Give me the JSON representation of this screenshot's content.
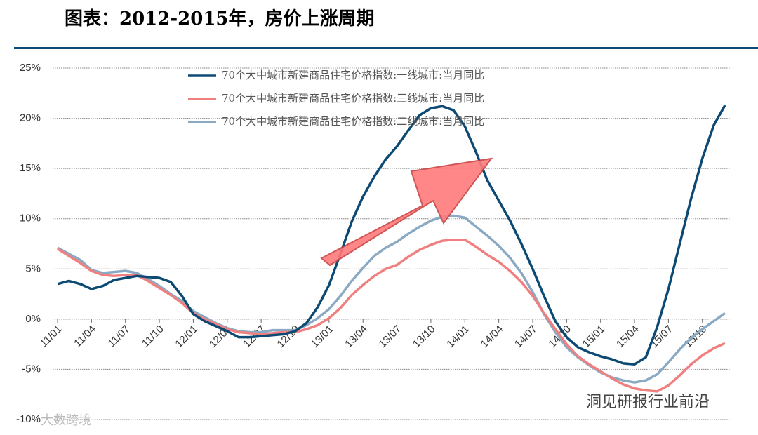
{
  "chart_data": {
    "type": "line",
    "title": "图表：2012-2015年，房价上涨周期",
    "categories": [
      "11/01",
      null,
      null,
      "11/04",
      null,
      null,
      "11/07",
      null,
      null,
      "11/10",
      null,
      null,
      "12/01",
      null,
      null,
      "12/04",
      null,
      null,
      "12/07",
      null,
      null,
      "12/10",
      null,
      null,
      "13/01",
      null,
      null,
      "13/04",
      null,
      null,
      "13/07",
      null,
      null,
      "13/10",
      null,
      null,
      "14/01",
      null,
      null,
      "14/04",
      null,
      null,
      "14/07",
      null,
      null,
      "14/10",
      null,
      null,
      "15/01",
      null,
      null,
      "15/04",
      null,
      null,
      "15/07",
      null,
      null,
      "15/10",
      null,
      null
    ],
    "series": [
      {
        "name": "70个大中城市新建商品住宅价格指数:一线城市:当月同比",
        "color": "#0d4a73",
        "values": [
          3.5,
          3.8,
          3.5,
          3.0,
          3.3,
          3.9,
          4.1,
          4.3,
          4.2,
          4.1,
          3.7,
          2.3,
          0.5,
          -0.2,
          -0.7,
          -1.2,
          -1.8,
          -1.8,
          -1.7,
          -1.6,
          -1.5,
          -1.2,
          -0.4,
          1.2,
          3.4,
          6.5,
          9.7,
          12.2,
          14.2,
          15.9,
          17.2,
          18.8,
          20.3,
          21.0,
          21.2,
          20.8,
          19.2,
          16.6,
          13.8,
          11.8,
          9.8,
          7.5,
          5.0,
          2.3,
          -0.2,
          -1.8,
          -2.8,
          -3.3,
          -3.7,
          -4.0,
          -4.4,
          -4.5,
          -3.8,
          -0.8,
          3.0,
          7.5,
          12.0,
          16.0,
          19.3,
          21.3
        ]
      },
      {
        "name": "70个大中城市新建商品住宅价格指数:三线城市:当月同比",
        "color": "#f08080",
        "values": [
          7.0,
          6.3,
          5.6,
          4.8,
          4.4,
          4.3,
          4.4,
          4.4,
          3.8,
          3.1,
          2.4,
          1.6,
          0.6,
          0.0,
          -0.5,
          -1.0,
          -1.3,
          -1.4,
          -1.5,
          -1.4,
          -1.3,
          -1.3,
          -1.0,
          -0.6,
          0.1,
          1.1,
          2.4,
          3.4,
          4.3,
          5.0,
          5.4,
          6.2,
          6.9,
          7.4,
          7.8,
          7.9,
          7.9,
          7.2,
          6.4,
          5.7,
          4.8,
          3.7,
          2.3,
          0.6,
          -1.0,
          -2.5,
          -3.7,
          -4.5,
          -5.2,
          -5.9,
          -6.5,
          -6.9,
          -7.1,
          -7.2,
          -6.6,
          -5.6,
          -4.5,
          -3.6,
          -2.9,
          -2.4
        ]
      },
      {
        "name": "70个大中城市新建商品住宅价格指数:二线城市:当月同比",
        "color": "#8aa9c3",
        "values": [
          7.1,
          6.5,
          5.9,
          4.9,
          4.6,
          4.7,
          4.8,
          4.6,
          4.0,
          3.3,
          2.5,
          1.8,
          0.8,
          0.2,
          -0.4,
          -0.9,
          -1.2,
          -1.3,
          -1.3,
          -1.1,
          -1.1,
          -1.1,
          -0.6,
          0.1,
          1.0,
          2.3,
          3.8,
          5.1,
          6.3,
          7.1,
          7.7,
          8.5,
          9.2,
          9.8,
          10.2,
          10.3,
          10.1,
          9.2,
          8.3,
          7.3,
          6.1,
          4.6,
          2.7,
          0.5,
          -1.3,
          -2.8,
          -3.8,
          -4.6,
          -5.3,
          -5.8,
          -6.1,
          -6.3,
          -6.1,
          -5.5,
          -4.3,
          -3.0,
          -1.9,
          -1.0,
          -0.2,
          0.6
        ]
      }
    ],
    "ylim": [
      -10,
      25
    ],
    "yticks": [
      {
        "value": -10,
        "label": "-10%"
      },
      {
        "value": -5,
        "label": "-5%"
      },
      {
        "value": 0,
        "label": "0%"
      },
      {
        "value": 5,
        "label": "5%"
      },
      {
        "value": 10,
        "label": "10%"
      },
      {
        "value": 15,
        "label": "15%"
      },
      {
        "value": 20,
        "label": "20%"
      },
      {
        "value": 25,
        "label": "25%"
      }
    ],
    "grid": true,
    "legend": "top",
    "watermarks": [
      "洞见研报行业前沿",
      "大数跨境"
    ]
  }
}
